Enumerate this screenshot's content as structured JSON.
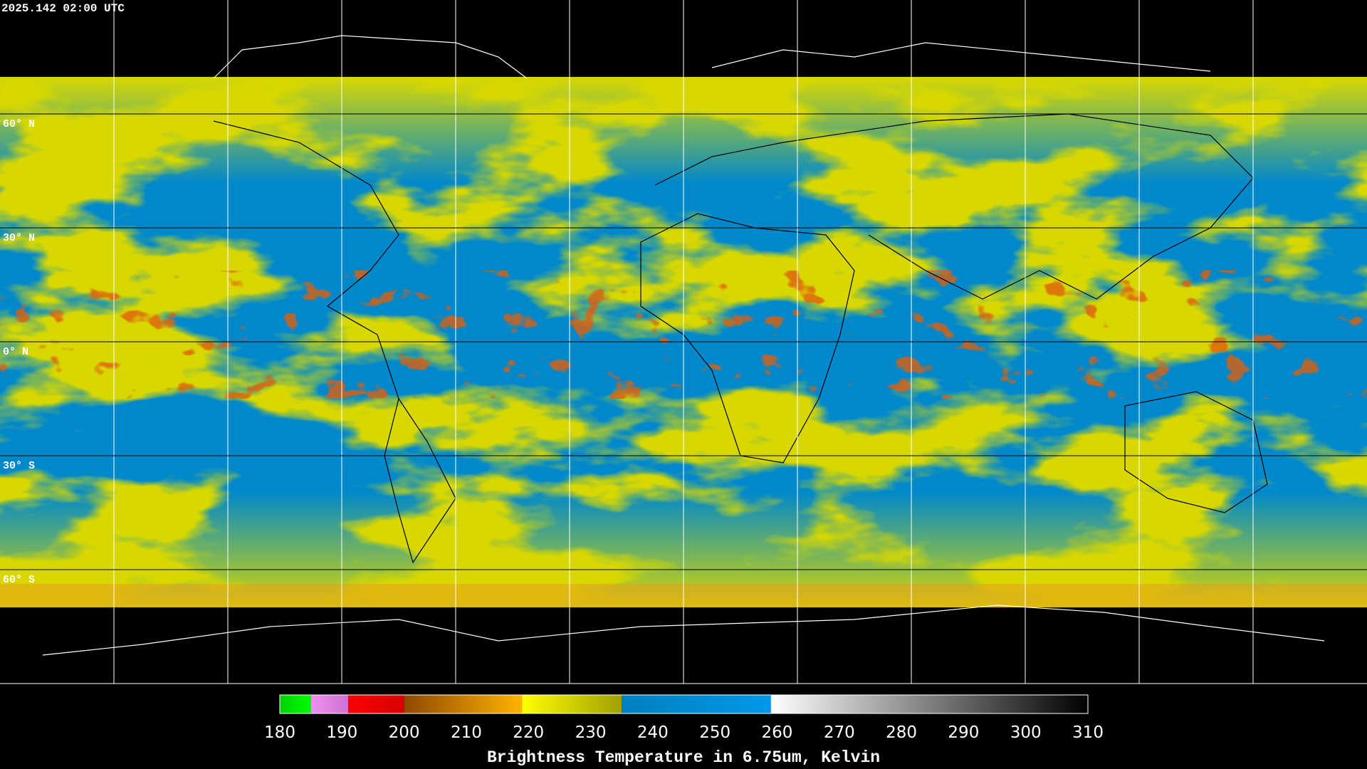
{
  "header": {
    "timestamp": "2025.142 02:00 UTC"
  },
  "map": {
    "lat_labels": [
      "60° N",
      "30° N",
      "0° N",
      "30° S",
      "60° S"
    ]
  },
  "colorbar": {
    "title": "Brightness Temperature in 6.75um, Kelvin",
    "range": [
      180,
      310
    ],
    "ticks": [
      180,
      190,
      200,
      210,
      220,
      230,
      240,
      250,
      260,
      270,
      280,
      290,
      300,
      310
    ],
    "segments": [
      {
        "from": 180,
        "to": 185,
        "color_from": "#00d000",
        "color_to": "#00ff00"
      },
      {
        "from": 185,
        "to": 191,
        "color_from": "#f090f0",
        "color_to": "#d070d0"
      },
      {
        "from": 191,
        "to": 200,
        "color_from": "#ff0000",
        "color_to": "#d80000"
      },
      {
        "from": 200,
        "to": 219,
        "color_from": "#904800",
        "color_to": "#ffb400"
      },
      {
        "from": 219,
        "to": 235,
        "color_from": "#ffff00",
        "color_to": "#a0a000"
      },
      {
        "from": 235,
        "to": 259,
        "color_from": "#0080c0",
        "color_to": "#0098e8"
      },
      {
        "from": 259,
        "to": 310,
        "color_from": "#ffffff",
        "color_to": "#000000"
      }
    ]
  }
}
